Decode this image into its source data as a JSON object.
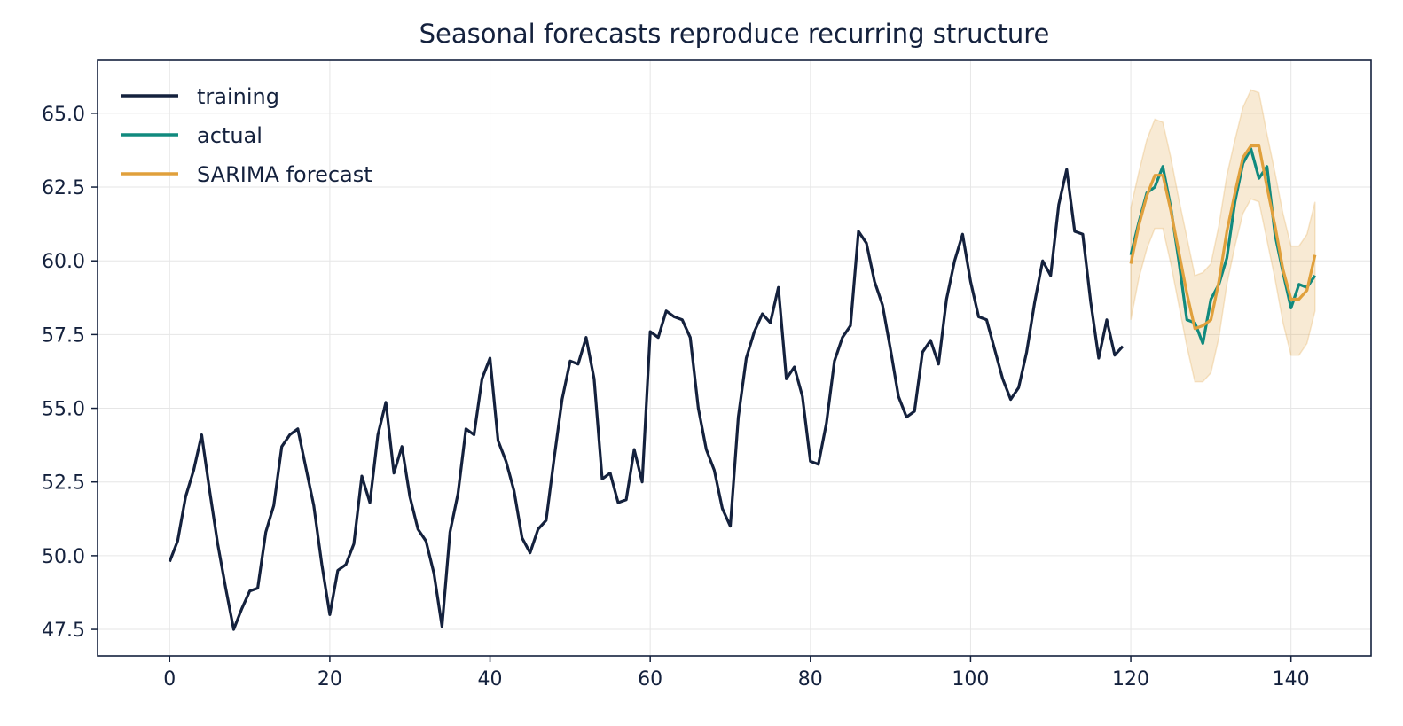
{
  "colors": {
    "ink": "#14213d",
    "training": "#14213d",
    "actual": "#118a7e",
    "forecast": "#e0a03c",
    "band": "#f3e2c4",
    "grid": "#e6e6e6"
  },
  "chart_data": {
    "type": "line",
    "title": "Seasonal forecasts reproduce recurring structure",
    "xlabel": "",
    "ylabel": "",
    "xlim": [
      -9,
      150
    ],
    "ylim": [
      46.6,
      66.8
    ],
    "grid": true,
    "legend_position": "top-left",
    "x_ticks": [
      0,
      20,
      40,
      60,
      80,
      100,
      120,
      140
    ],
    "x_tick_labels": [
      "0",
      "20",
      "40",
      "60",
      "80",
      "100",
      "120",
      "140"
    ],
    "y_ticks": [
      47.5,
      50.0,
      52.5,
      55.0,
      57.5,
      60.0,
      62.5,
      65.0
    ],
    "y_tick_labels": [
      "47.5",
      "50.0",
      "52.5",
      "55.0",
      "57.5",
      "60.0",
      "62.5",
      "65.0"
    ],
    "legend": [
      "training",
      "actual",
      "SARIMA forecast"
    ],
    "series": [
      {
        "name": "training",
        "x_start": 0,
        "values": [
          49.8,
          50.5,
          52.0,
          52.9,
          54.1,
          52.2,
          50.4,
          48.9,
          47.5,
          48.2,
          48.8,
          48.9,
          50.8,
          51.7,
          53.7,
          54.1,
          54.3,
          53.0,
          51.7,
          49.7,
          48.0,
          49.5,
          49.7,
          50.4,
          52.7,
          51.8,
          54.1,
          55.2,
          52.8,
          53.7,
          52.0,
          50.9,
          50.5,
          49.4,
          47.6,
          50.8,
          52.1,
          54.3,
          54.1,
          56.0,
          56.7,
          53.9,
          53.2,
          52.2,
          50.6,
          50.1,
          50.9,
          51.2,
          53.3,
          55.3,
          56.6,
          56.5,
          57.4,
          56.0,
          52.6,
          52.8,
          51.8,
          51.9,
          53.6,
          52.5,
          57.6,
          57.4,
          58.3,
          58.1,
          58.0,
          57.4,
          55.0,
          53.6,
          52.9,
          51.6,
          51.0,
          54.7,
          56.7,
          57.6,
          58.2,
          57.9,
          59.1,
          56.0,
          56.4,
          55.4,
          53.2,
          53.1,
          54.5,
          56.6,
          57.4,
          57.8,
          61.0,
          60.6,
          59.3,
          58.5,
          57.0,
          55.4,
          54.7,
          54.9,
          56.9,
          57.3,
          56.5,
          58.7,
          60.0,
          60.9,
          59.3,
          58.1,
          58.0,
          57.0,
          56.0,
          55.3,
          55.7,
          56.9,
          58.6,
          60.0,
          59.5,
          61.9,
          63.1,
          61.0,
          60.9,
          58.6,
          56.7,
          58.0,
          56.8,
          57.1
        ]
      },
      {
        "name": "actual",
        "x_start": 120,
        "values": [
          60.2,
          61.3,
          62.3,
          62.5,
          63.2,
          61.8,
          60.0,
          58.0,
          57.9,
          57.2,
          58.7,
          59.2,
          60.1,
          62.0,
          63.3,
          63.8,
          62.8,
          63.2,
          60.9,
          59.6,
          58.4,
          59.2,
          59.1,
          59.5
        ]
      },
      {
        "name": "SARIMA forecast",
        "x_start": 120,
        "values": [
          59.9,
          61.2,
          62.2,
          62.9,
          62.9,
          61.7,
          60.3,
          58.9,
          57.7,
          57.8,
          58.0,
          59.3,
          61.0,
          62.3,
          63.5,
          63.9,
          63.9,
          62.5,
          61.2,
          59.7,
          58.7,
          58.7,
          59.0,
          60.2
        ]
      },
      {
        "name": "forecast interval",
        "x_start": 120,
        "lower": [
          58.0,
          59.4,
          60.4,
          61.1,
          61.1,
          59.9,
          58.5,
          57.1,
          55.9,
          55.9,
          56.2,
          57.4,
          59.2,
          60.5,
          61.6,
          62.1,
          62.0,
          60.7,
          59.4,
          57.9,
          56.8,
          56.8,
          57.2,
          58.3
        ],
        "upper": [
          61.8,
          63.0,
          64.1,
          64.8,
          64.7,
          63.5,
          62.1,
          60.8,
          59.5,
          59.6,
          59.9,
          61.2,
          62.9,
          64.1,
          65.2,
          65.8,
          65.7,
          64.3,
          63.0,
          61.6,
          60.5,
          60.5,
          60.9,
          62.0
        ]
      }
    ]
  }
}
